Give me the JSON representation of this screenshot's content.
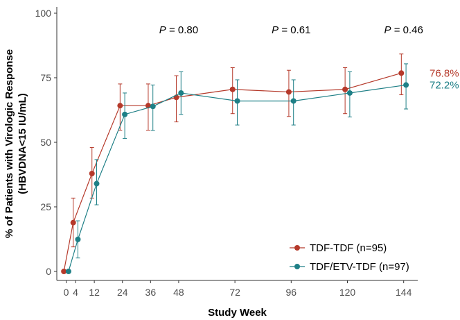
{
  "chart_data": {
    "type": "line",
    "xlabel": "Study Week",
    "ylabel_line1": "% of Patients with Virologic Response",
    "ylabel_line2": "(HBVDNA<15 IU/mL)",
    "x_ticks": [
      0,
      4,
      12,
      24,
      36,
      48,
      72,
      96,
      120,
      144
    ],
    "x_tick_labels": [
      "0",
      "4",
      "12",
      "24",
      "36",
      "48",
      "72",
      "96",
      "120",
      "144"
    ],
    "y_ticks": [
      0,
      25,
      50,
      75,
      100
    ],
    "y_tick_labels": [
      "0",
      "25",
      "50",
      "75",
      "100"
    ],
    "xlim": [
      -4,
      150
    ],
    "ylim": [
      -4,
      100
    ],
    "grid": false,
    "legend_position": "bottom-right",
    "series": [
      {
        "name": "TDF-TDF (n=95)",
        "color": "#b5392a",
        "x": [
          0,
          4,
          12,
          24,
          36,
          48,
          72,
          96,
          120,
          144
        ],
        "y": [
          0,
          18.9,
          37.9,
          64.2,
          64.2,
          67.4,
          70.5,
          69.5,
          70.5,
          76.8
        ],
        "err_low": [
          0,
          9.5,
          28.4,
          54.7,
          54.7,
          57.9,
          61.1,
          60.0,
          61.1,
          68.4
        ],
        "err_high": [
          0,
          28.4,
          48.0,
          72.6,
          72.6,
          75.8,
          78.9,
          77.9,
          78.9,
          84.2
        ],
        "end_label": "76.8%"
      },
      {
        "name": "TDF/ETV-TDF (n=97)",
        "color": "#1e7f86",
        "x": [
          0,
          4,
          12,
          24,
          36,
          48,
          72,
          96,
          120,
          144
        ],
        "y": [
          0,
          12.4,
          34.0,
          60.8,
          63.9,
          69.1,
          66.0,
          66.0,
          69.1,
          72.2
        ],
        "err_low": [
          0,
          5.2,
          25.8,
          51.5,
          54.6,
          60.8,
          56.7,
          56.7,
          59.8,
          62.9
        ],
        "err_high": [
          0,
          19.6,
          43.3,
          69.1,
          72.2,
          77.3,
          74.2,
          74.2,
          77.3,
          80.4
        ],
        "end_label": "72.2%"
      }
    ],
    "annotations": [
      {
        "x": 48,
        "label": "P = 0.80"
      },
      {
        "x": 96,
        "label": "P = 0.61"
      },
      {
        "x": 144,
        "label": "P = 0.46"
      }
    ],
    "annotation_prefix": "P",
    "annotation_values": [
      "= 0.80",
      "= 0.61",
      "= 0.46"
    ]
  }
}
